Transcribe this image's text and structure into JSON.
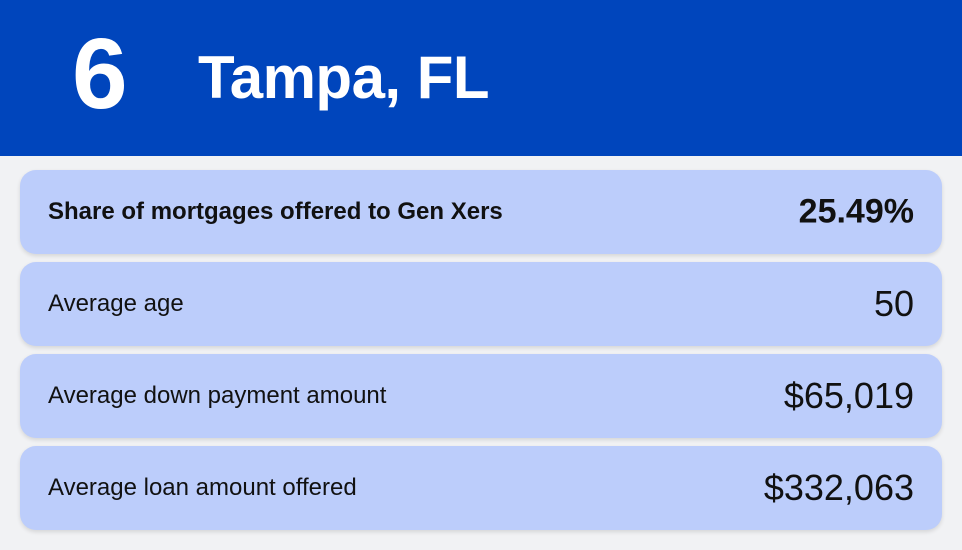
{
  "header": {
    "rank": "6",
    "city": "Tampa, FL"
  },
  "rows": [
    {
      "label": "Share of mortgages offered to Gen Xers",
      "value": "25.49%"
    },
    {
      "label": "Average age",
      "value": "50"
    },
    {
      "label": "Average down payment amount",
      "value": "$65,019"
    },
    {
      "label": "Average loan amount offered",
      "value": "$332,063"
    }
  ],
  "colors": {
    "header_background": "#0045bc",
    "row_background": "#bccdfb",
    "page_background": "#f1f2f4"
  }
}
